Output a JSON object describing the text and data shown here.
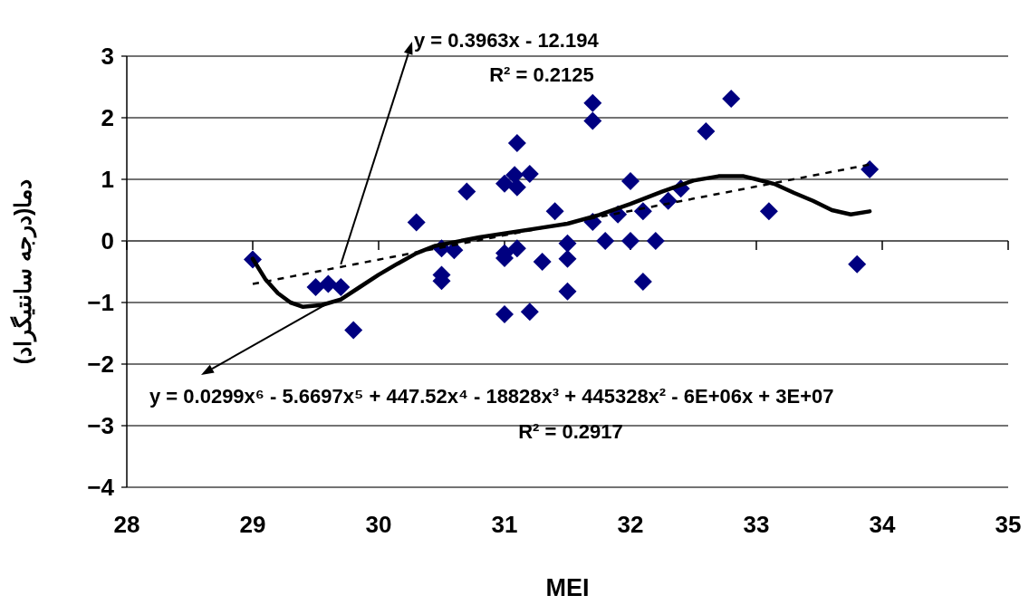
{
  "chart_data": {
    "type": "scatter",
    "xlabel": "MEI",
    "ylabel": "دما(درجه سانتیگراد)",
    "xlim": [
      28,
      35
    ],
    "ylim": [
      -4,
      3
    ],
    "xticks": [
      28,
      29,
      30,
      31,
      32,
      33,
      34,
      35
    ],
    "yticks": [
      -4,
      -3,
      -2,
      -1,
      0,
      1,
      2,
      3
    ],
    "grid": "y",
    "series": [
      {
        "marker": "diamond",
        "color": "#000080",
        "x": [
          29.0,
          29.5,
          29.6,
          29.7,
          29.8,
          30.3,
          30.5,
          30.5,
          30.5,
          30.6,
          30.7,
          31.0,
          31.08,
          31.1,
          31.2,
          31.1,
          31.0,
          31.0,
          31.1,
          31.3,
          31.0,
          31.2,
          31.4,
          31.5,
          31.5,
          31.5,
          31.7,
          31.7,
          31.7,
          31.8,
          31.9,
          32.0,
          32.0,
          32.1,
          32.1,
          32.2,
          32.3,
          32.4,
          32.6,
          32.8,
          33.1,
          33.8,
          33.9
        ],
        "values": [
          -0.3,
          -0.75,
          -0.7,
          -0.75,
          -1.45,
          0.3,
          -0.12,
          -0.55,
          -0.65,
          -0.15,
          0.8,
          0.93,
          1.07,
          0.87,
          1.09,
          1.59,
          -0.2,
          -0.28,
          -0.12,
          -0.34,
          -1.19,
          -1.15,
          0.48,
          -0.04,
          -0.29,
          -0.82,
          2.24,
          1.95,
          0.31,
          0.0,
          0.43,
          0.97,
          0.0,
          0.48,
          -0.66,
          0.0,
          0.65,
          0.85,
          1.78,
          2.31,
          0.48,
          -0.38,
          1.16
        ]
      },
      {
        "type": "line",
        "marker": "none",
        "color": "#000000",
        "line_style": "dashed",
        "x": [
          29.0,
          33.9
        ],
        "values": [
          -0.7,
          1.24
        ]
      },
      {
        "type": "line",
        "marker": "none",
        "color": "#000000",
        "line_style": "solid",
        "x": [
          29.0,
          29.1,
          29.2,
          29.3,
          29.4,
          29.55,
          29.7,
          29.85,
          30.0,
          30.15,
          30.3,
          30.45,
          30.6,
          30.8,
          31.0,
          31.25,
          31.5,
          31.75,
          32.0,
          32.25,
          32.5,
          32.7,
          32.9,
          33.0,
          33.15,
          33.3,
          33.45,
          33.6,
          33.75,
          33.9
        ],
        "values": [
          -0.29,
          -0.62,
          -0.85,
          -1.0,
          -1.07,
          -1.04,
          -0.95,
          -0.75,
          -0.55,
          -0.37,
          -0.2,
          -0.08,
          -0.02,
          0.06,
          0.12,
          0.2,
          0.28,
          0.42,
          0.6,
          0.8,
          0.98,
          1.05,
          1.05,
          1.0,
          0.92,
          0.78,
          0.65,
          0.5,
          0.43,
          0.48
        ]
      }
    ],
    "annotations": [
      {
        "text": "y = 0.3963x - 12.194",
        "x": 29.7,
        "y": -0.38
      },
      "R² = 0.2125",
      {
        "text": "y = 0.0299x⁶ - 5.6697x⁵ + 447.52x⁴ - 18828x³ + 445328x² - 6E+06x + 3E+07",
        "x": 29.6,
        "y": -1.01
      },
      "R² = 0.2917"
    ]
  }
}
